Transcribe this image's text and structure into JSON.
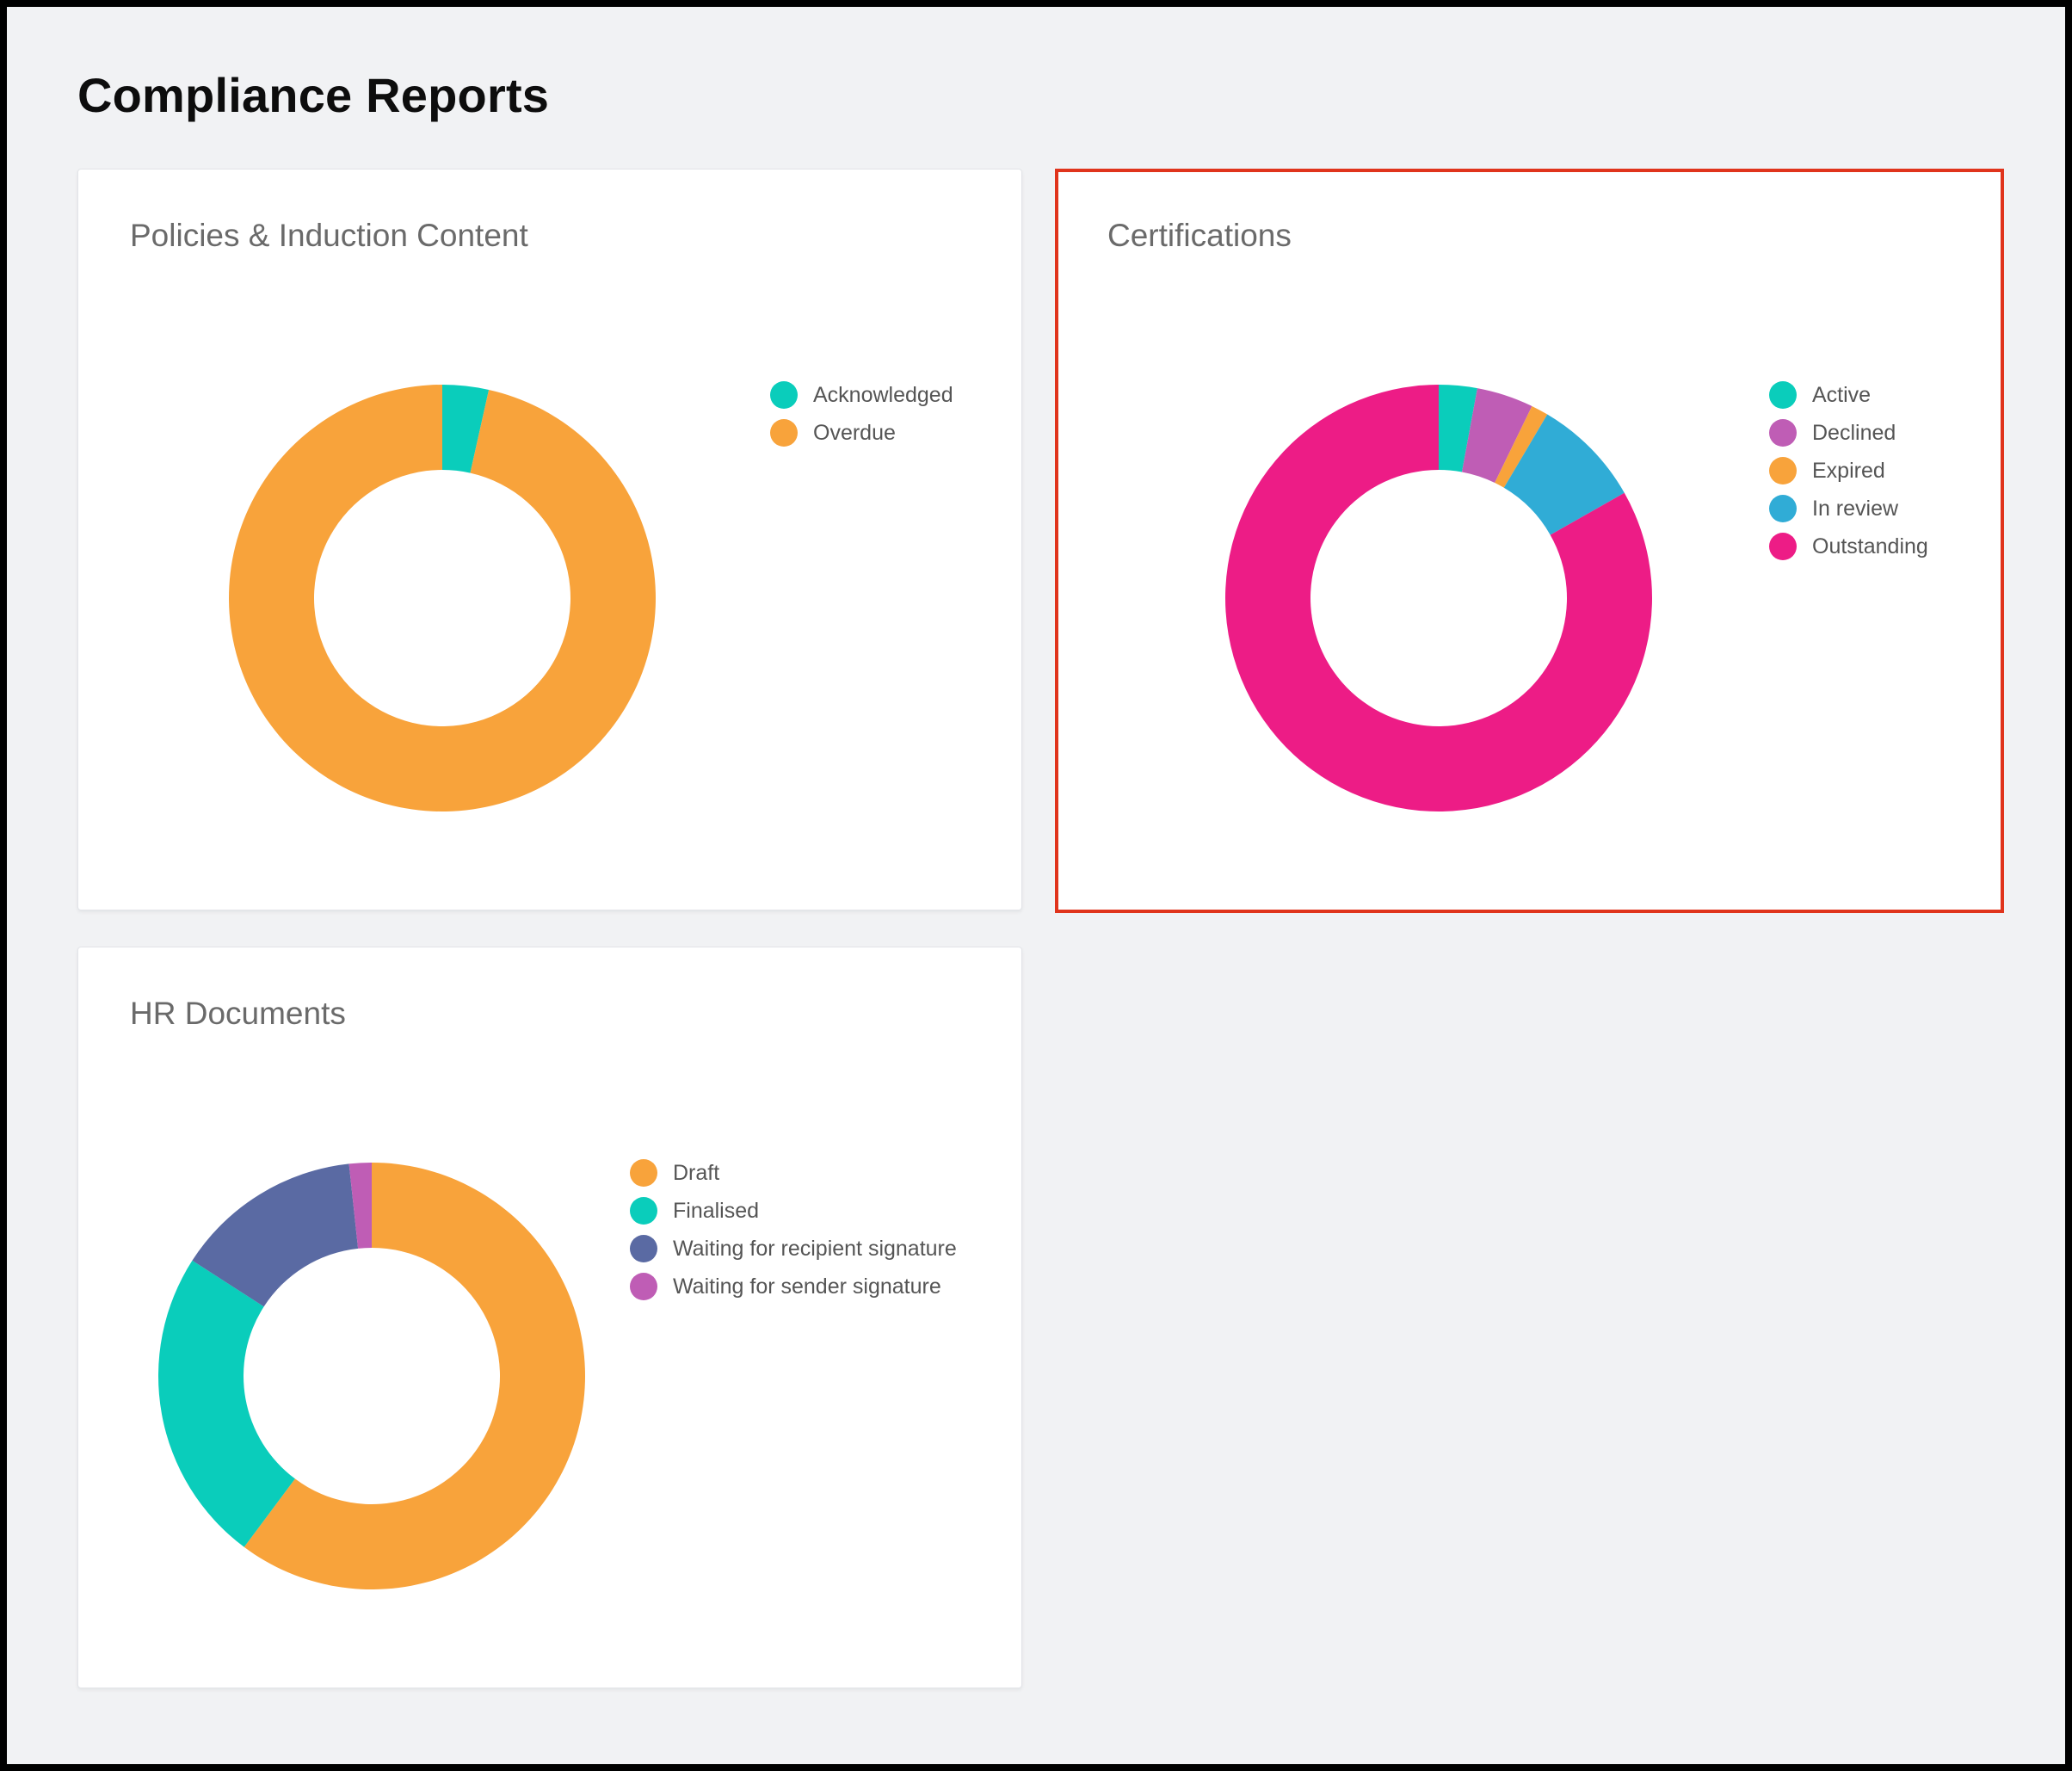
{
  "page": {
    "title": "Compliance Reports"
  },
  "chart_data": [
    {
      "type": "pie",
      "title": "Policies & Induction Content",
      "donut": true,
      "categories": [
        "Acknowledged",
        "Overdue"
      ],
      "values": [
        3.5,
        96.5
      ],
      "colors": [
        "#0acdbb",
        "#f8a33b"
      ]
    },
    {
      "type": "pie",
      "title": "Certifications",
      "donut": true,
      "categories": [
        "Active",
        "Declined",
        "Expired",
        "In review",
        "Outstanding"
      ],
      "values": [
        2.9,
        4.3,
        1.3,
        8.3,
        83.2
      ],
      "colors": [
        "#0acdbb",
        "#bf5db5",
        "#f8a33b",
        "#30acd6",
        "#ed1c86"
      ]
    },
    {
      "type": "pie",
      "title": "HR Documents",
      "donut": true,
      "categories": [
        "Draft",
        "Finalised",
        "Waiting for recipient signature",
        "Waiting for sender signature"
      ],
      "values": [
        60.2,
        23.9,
        14.2,
        1.7
      ],
      "colors": [
        "#f8a33b",
        "#0acdbb",
        "#5a6aa3",
        "#bf5db5"
      ]
    }
  ]
}
